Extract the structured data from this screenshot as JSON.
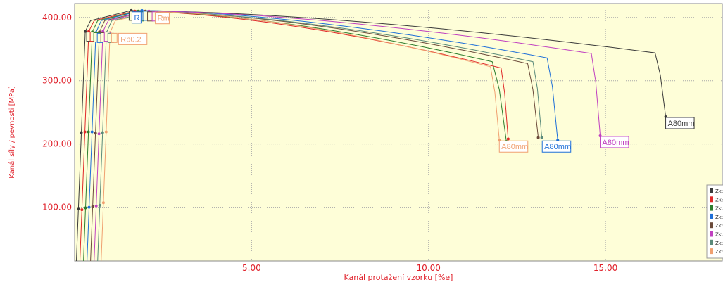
{
  "chart_data": {
    "type": "line",
    "title": "",
    "xlabel": "Kanál protažení vzorku  [%e]",
    "ylabel": "Kanál síly / pevnosti  [MPa]",
    "xlim": [
      0,
      18.3
    ],
    "ylim": [
      15,
      422
    ],
    "x_ticks": [
      5,
      10,
      15
    ],
    "x_tick_labels": [
      "5.00",
      "10.00",
      "15.00"
    ],
    "y_ticks": [
      100,
      200,
      300,
      400
    ],
    "y_tick_labels": [
      "100.00",
      "200.00",
      "300.00",
      "400.00"
    ],
    "grid": "dotted",
    "background": "#fefed8",
    "legend": {
      "position": "right",
      "labels": [
        "Zk:",
        "Zk:",
        "Zk:",
        "Zk:",
        "Zk:",
        "Zk:",
        "Zk:",
        "Zk:"
      ]
    },
    "point_labels": {
      "rm": "Rm",
      "rp": "Rp0.2",
      "a80": "A80mm",
      "r_short": "R"
    },
    "series": [
      {
        "color": "#3a3a3a",
        "offset": 0.05,
        "Rp": 378,
        "Rm_x": 1.6,
        "Rm_y": 411,
        "knee_x": 16.4,
        "knee_y": 344,
        "end_x": 16.7,
        "end_y": 243,
        "mark_100": 98,
        "mark_218": 218
      },
      {
        "color": "#e02828",
        "offset": 0.15,
        "Rp": 378,
        "Rm_x": 1.7,
        "Rm_y": 410,
        "knee_x": 12.05,
        "knee_y": 320,
        "end_x": 12.25,
        "end_y": 208,
        "mark_100": 96,
        "mark_218": 219
      },
      {
        "color": "#2e7d2e",
        "offset": 0.25,
        "Rp": 377,
        "Rm_x": 1.8,
        "Rm_y": 410,
        "knee_x": 11.8,
        "knee_y": 330,
        "end_x": 12.2,
        "end_y": 204,
        "mark_100": 99,
        "mark_218": 219
      },
      {
        "color": "#1e6fd8",
        "offset": 0.35,
        "Rp": 376,
        "Rm_x": 1.9,
        "Rm_y": 411,
        "knee_x": 13.35,
        "knee_y": 336,
        "end_x": 13.65,
        "end_y": 206,
        "mark_100": 100,
        "mark_218": 219
      },
      {
        "color": "#6b4a3a",
        "offset": 0.45,
        "Rp": 377,
        "Rm_x": 2.0,
        "Rm_y": 410,
        "knee_x": 12.8,
        "knee_y": 327,
        "end_x": 13.1,
        "end_y": 210,
        "mark_100": 101,
        "mark_218": 217
      },
      {
        "color": "#c040c0",
        "offset": 0.55,
        "Rp": 378,
        "Rm_x": 2.1,
        "Rm_y": 410,
        "knee_x": 14.6,
        "knee_y": 343,
        "end_x": 14.85,
        "end_y": 213,
        "mark_100": 102,
        "mark_218": 216
      },
      {
        "color": "#5a8a7a",
        "offset": 0.65,
        "Rp": 376,
        "Rm_x": 2.2,
        "Rm_y": 409,
        "knee_x": 12.95,
        "knee_y": 330,
        "end_x": 13.2,
        "end_y": 210,
        "mark_100": 103,
        "mark_218": 218
      },
      {
        "color": "#f0a070",
        "offset": 0.75,
        "Rp": 376,
        "Rm_x": 2.3,
        "Rm_y": 409,
        "knee_x": 11.75,
        "knee_y": 322,
        "end_x": 12.0,
        "end_y": 206,
        "mark_100": 107,
        "mark_218": 219
      }
    ]
  }
}
